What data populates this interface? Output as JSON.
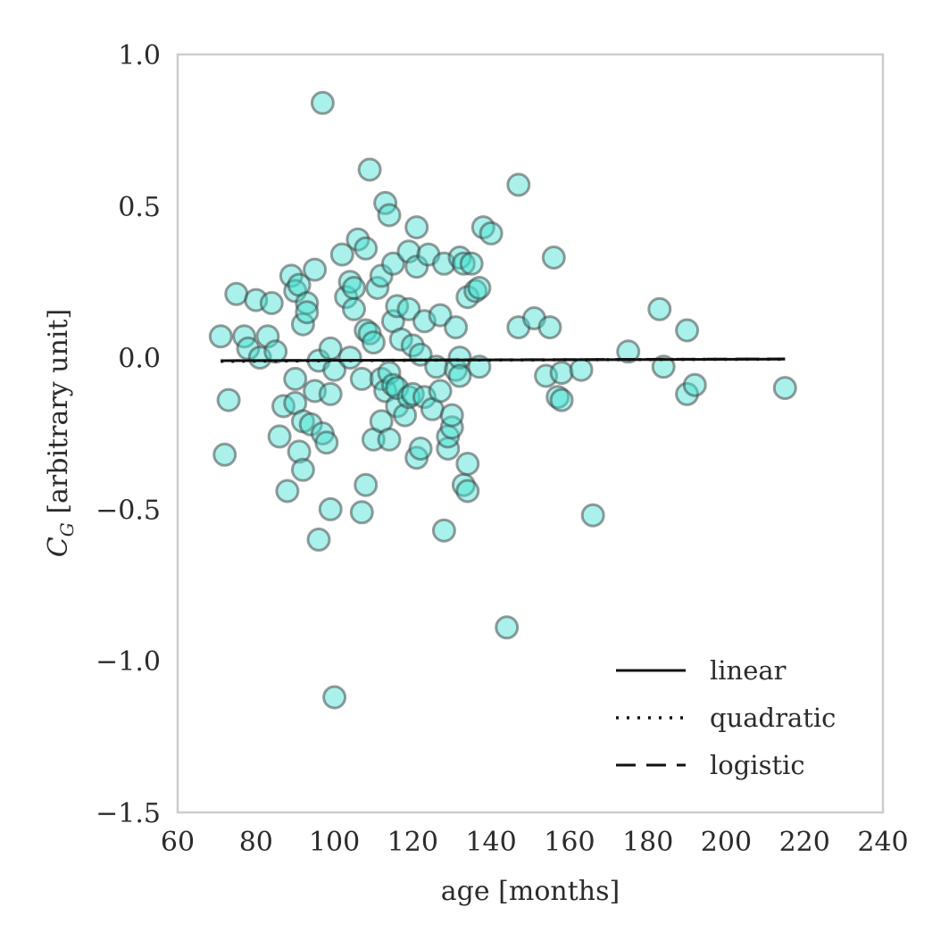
{
  "chart_data": {
    "type": "scatter",
    "xlabel": "age [months]",
    "ylabel": "C_G [arbitrary unit]",
    "ylabel_main": "C",
    "ylabel_sub": "G",
    "ylabel_rest": " [arbitrary unit]",
    "xlim": [
      60,
      240
    ],
    "ylim": [
      -1.5,
      1.0
    ],
    "xticks": [
      60,
      80,
      100,
      120,
      140,
      160,
      180,
      200,
      220,
      240
    ],
    "yticks": [
      -1.5,
      -1.0,
      -0.5,
      0.0,
      0.5,
      1.0
    ],
    "xtick_labels": [
      "60",
      "80",
      "100",
      "120",
      "140",
      "160",
      "180",
      "200",
      "220",
      "240"
    ],
    "ytick_labels": [
      "−1.5",
      "−1.0",
      "−0.5",
      "0.0",
      "0.5",
      "1.0"
    ],
    "grid": false,
    "legend_position": "bottom-right",
    "point_color": "#40e0d0",
    "points": [
      [
        71,
        0.07
      ],
      [
        72,
        -0.32
      ],
      [
        73,
        -0.14
      ],
      [
        75,
        0.21
      ],
      [
        77,
        0.07
      ],
      [
        78,
        0.03
      ],
      [
        80,
        0.19
      ],
      [
        81,
        0.0
      ],
      [
        83,
        0.07
      ],
      [
        84,
        0.18
      ],
      [
        85,
        0.02
      ],
      [
        86,
        -0.26
      ],
      [
        87,
        -0.16
      ],
      [
        88,
        -0.44
      ],
      [
        89,
        0.27
      ],
      [
        90,
        0.22
      ],
      [
        90,
        -0.15
      ],
      [
        90,
        -0.07
      ],
      [
        91,
        -0.31
      ],
      [
        91,
        0.24
      ],
      [
        92,
        -0.37
      ],
      [
        92,
        0.11
      ],
      [
        92,
        -0.21
      ],
      [
        93,
        0.18
      ],
      [
        93,
        0.15
      ],
      [
        94,
        -0.22
      ],
      [
        95,
        0.29
      ],
      [
        95,
        -0.11
      ],
      [
        96,
        -0.6
      ],
      [
        96,
        -0.01
      ],
      [
        97,
        -0.25
      ],
      [
        97,
        0.84
      ],
      [
        98,
        -0.28
      ],
      [
        99,
        -0.5
      ],
      [
        99,
        0.03
      ],
      [
        99,
        -0.12
      ],
      [
        100,
        -1.12
      ],
      [
        100,
        -0.04
      ],
      [
        102,
        0.34
      ],
      [
        103,
        0.2
      ],
      [
        104,
        0.25
      ],
      [
        104,
        0.0
      ],
      [
        105,
        0.23
      ],
      [
        105,
        0.16
      ],
      [
        106,
        0.39
      ],
      [
        107,
        -0.51
      ],
      [
        107,
        -0.07
      ],
      [
        108,
        -0.42
      ],
      [
        108,
        0.36
      ],
      [
        108,
        0.09
      ],
      [
        109,
        0.62
      ],
      [
        109,
        0.08
      ],
      [
        110,
        -0.27
      ],
      [
        110,
        0.05
      ],
      [
        111,
        0.23
      ],
      [
        112,
        -0.21
      ],
      [
        112,
        0.27
      ],
      [
        112,
        -0.07
      ],
      [
        113,
        0.51
      ],
      [
        113,
        -0.11
      ],
      [
        114,
        0.47
      ],
      [
        114,
        -0.05
      ],
      [
        114,
        -0.27
      ],
      [
        115,
        0.31
      ],
      [
        115,
        0.12
      ],
      [
        115,
        -0.09
      ],
      [
        116,
        0.17
      ],
      [
        116,
        -0.16
      ],
      [
        116,
        -0.1
      ],
      [
        117,
        0.06
      ],
      [
        118,
        -0.19
      ],
      [
        119,
        0.16
      ],
      [
        119,
        0.35
      ],
      [
        119,
        -0.13
      ],
      [
        120,
        0.04
      ],
      [
        120,
        -0.12
      ],
      [
        121,
        0.43
      ],
      [
        121,
        0.3
      ],
      [
        121,
        -0.33
      ],
      [
        122,
        -0.3
      ],
      [
        122,
        0.01
      ],
      [
        123,
        -0.13
      ],
      [
        123,
        0.12
      ],
      [
        124,
        0.34
      ],
      [
        125,
        -0.17
      ],
      [
        126,
        -0.03
      ],
      [
        127,
        0.14
      ],
      [
        127,
        -0.11
      ],
      [
        128,
        -0.57
      ],
      [
        128,
        0.31
      ],
      [
        129,
        -0.3
      ],
      [
        129,
        -0.26
      ],
      [
        130,
        -0.23
      ],
      [
        130,
        -0.19
      ],
      [
        131,
        -0.04
      ],
      [
        131,
        0.1
      ],
      [
        132,
        0.0
      ],
      [
        132,
        0.33
      ],
      [
        132,
        -0.06
      ],
      [
        133,
        0.31
      ],
      [
        133,
        -0.42
      ],
      [
        134,
        -0.35
      ],
      [
        134,
        -0.44
      ],
      [
        134,
        0.2
      ],
      [
        135,
        0.31
      ],
      [
        136,
        0.22
      ],
      [
        137,
        0.23
      ],
      [
        137,
        -0.03
      ],
      [
        138,
        0.43
      ],
      [
        140,
        0.41
      ],
      [
        144,
        -0.89
      ],
      [
        147,
        0.57
      ],
      [
        147,
        0.1
      ],
      [
        151,
        0.13
      ],
      [
        154,
        -0.06
      ],
      [
        155,
        0.1
      ],
      [
        156,
        0.33
      ],
      [
        157,
        -0.13
      ],
      [
        158,
        -0.14
      ],
      [
        158,
        -0.05
      ],
      [
        163,
        -0.04
      ],
      [
        166,
        -0.52
      ],
      [
        175,
        0.02
      ],
      [
        183,
        0.16
      ],
      [
        184,
        -0.03
      ],
      [
        190,
        -0.12
      ],
      [
        190,
        0.09
      ],
      [
        192,
        -0.09
      ],
      [
        215,
        -0.1
      ]
    ],
    "series": [
      {
        "name": "linear",
        "style": "solid",
        "x": [
          71,
          215
        ],
        "y": [
          -0.01,
          -0.005
        ]
      },
      {
        "name": "quadratic",
        "style": "dotted",
        "x": [
          71,
          100,
          130,
          160,
          190,
          215
        ],
        "y": [
          -0.012,
          -0.01,
          -0.008,
          -0.007,
          -0.006,
          -0.005
        ]
      },
      {
        "name": "logistic",
        "style": "dashed",
        "x": [
          71,
          215
        ],
        "y": [
          -0.01,
          -0.004
        ]
      }
    ]
  }
}
